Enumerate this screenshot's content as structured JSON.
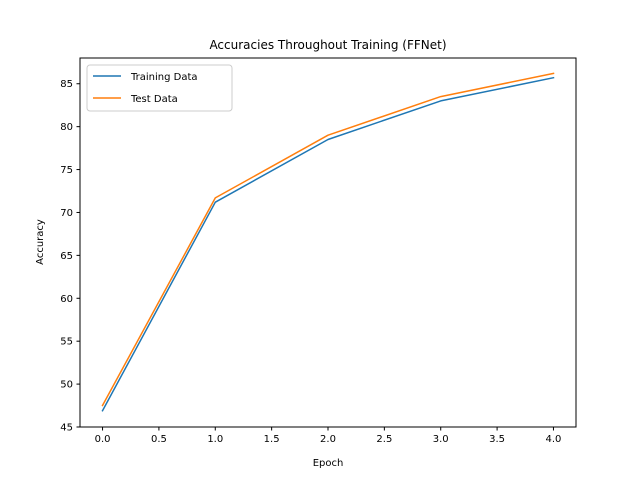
{
  "chart_data": {
    "type": "line",
    "title": "Accuracies Throughout Training (FFNet)",
    "xlabel": "Epoch",
    "ylabel": "Accuracy",
    "x": [
      0,
      1,
      2,
      3,
      4
    ],
    "series": [
      {
        "name": "Training Data",
        "color": "#1f77b4",
        "values": [
          46.9,
          71.2,
          78.5,
          83.0,
          85.7
        ]
      },
      {
        "name": "Test Data",
        "color": "#ff7f0e",
        "values": [
          47.5,
          71.7,
          79.0,
          83.5,
          86.2
        ]
      }
    ],
    "xlim": [
      -0.2,
      4.2
    ],
    "ylim": [
      45,
      88
    ],
    "xticks": [
      0.0,
      0.5,
      1.0,
      1.5,
      2.0,
      2.5,
      3.0,
      3.5,
      4.0
    ],
    "xtick_labels": [
      "0.0",
      "0.5",
      "1.0",
      "1.5",
      "2.0",
      "2.5",
      "3.0",
      "3.5",
      "4.0"
    ],
    "yticks": [
      45,
      50,
      55,
      60,
      65,
      70,
      75,
      80,
      85
    ],
    "ytick_labels": [
      "45",
      "50",
      "55",
      "60",
      "65",
      "70",
      "75",
      "80",
      "85"
    ],
    "grid": false,
    "legend_position": "upper left"
  }
}
